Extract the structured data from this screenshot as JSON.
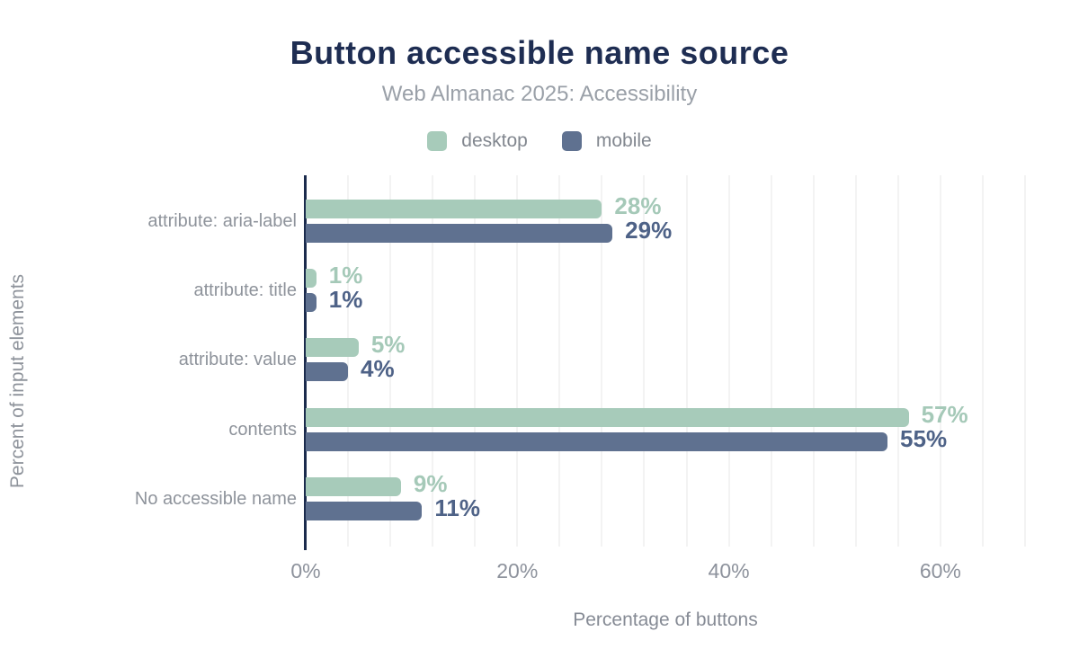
{
  "title": "Button accessible name source",
  "subtitle": "Web Almanac 2025: Accessibility",
  "legend": {
    "items": [
      {
        "label": "desktop",
        "color": "#a7cbba"
      },
      {
        "label": "mobile",
        "color": "#5f7190"
      }
    ]
  },
  "chart_data": {
    "type": "bar",
    "orientation": "horizontal",
    "title": "Button accessible name source",
    "subtitle": "Web Almanac 2025: Accessibility",
    "categories": [
      "attribute: aria-label",
      "attribute: title",
      "attribute: value",
      "contents",
      "No accessible name"
    ],
    "series": [
      {
        "name": "desktop",
        "color": "#a7cbba",
        "label_color": "#a5c9b8",
        "values": [
          28,
          1,
          5,
          57,
          9
        ]
      },
      {
        "name": "mobile",
        "color": "#5f7190",
        "label_color": "#4e6287",
        "values": [
          29,
          1,
          4,
          55,
          11
        ]
      }
    ],
    "value_suffix": "%",
    "xlabel": "Percentage of buttons",
    "ylabel": "Percent of input elements",
    "xlim": [
      0,
      68
    ],
    "x_ticks": [
      {
        "value": 0,
        "label": "0%"
      },
      {
        "value": 20,
        "label": "20%"
      },
      {
        "value": 40,
        "label": "40%"
      },
      {
        "value": 60,
        "label": "60%"
      }
    ],
    "grid": {
      "on": true,
      "minor_step_percent": 4,
      "color": "#f3f3f3"
    },
    "legend_position": "top"
  },
  "colors": {
    "title": "#1e2d52",
    "axis_line": "#1b2b4d",
    "subtitle": "#9aa0a8",
    "category_label": "#8e939b",
    "tick_label": "#8d929c",
    "background": "#ffffff"
  }
}
